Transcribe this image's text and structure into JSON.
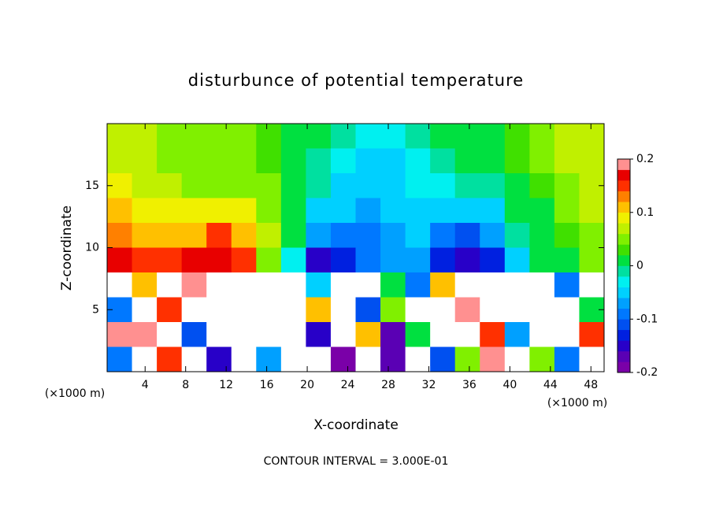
{
  "chart_data": {
    "type": "heatmap",
    "title": "disturbunce of potential temperature",
    "x_label": "X-coordinate",
    "y_label": "Z-coordinate",
    "x_unit": "(×1000 m)",
    "annotation": "CONTOUR INTERVAL = 3.000E-01",
    "xlim": [
      0.25,
      49.3
    ],
    "xticks": [
      4,
      8,
      12,
      16,
      20,
      24,
      28,
      32,
      36,
      40,
      44,
      48
    ],
    "ylim": [
      0,
      20
    ],
    "yticks": [
      5,
      10,
      15
    ],
    "zlim": [
      -0.2,
      0.2
    ],
    "zticks": [
      0.2,
      0.1,
      0,
      -0.1,
      -0.2
    ],
    "colors": [
      "#7a00a8",
      "#5a00b4",
      "#2800c8",
      "#0020e0",
      "#0050f0",
      "#0078ff",
      "#00a0ff",
      "#00d0ff",
      "#00f0f0",
      "#00e0a0",
      "#00e040",
      "#40e000",
      "#80f000",
      "#c0f000",
      "#f0f000",
      "#ffc000",
      "#ff8000",
      "#ff3000",
      "#e80000",
      "#ff9090"
    ],
    "z": [
      [
        0.06,
        0.06,
        0.05,
        0.04,
        0.04,
        0.04,
        0.03,
        0.02,
        0.0,
        -0.02,
        -0.03,
        -0.03,
        -0.02,
        0.0,
        0.02,
        0.02,
        0.03,
        0.04,
        0.06,
        0.07
      ],
      [
        0.07,
        0.06,
        0.05,
        0.05,
        0.04,
        0.04,
        0.03,
        0.02,
        -0.01,
        -0.03,
        -0.04,
        -0.04,
        -0.03,
        -0.01,
        0.01,
        0.02,
        0.03,
        0.04,
        0.06,
        0.07
      ],
      [
        0.08,
        0.07,
        0.06,
        0.05,
        0.05,
        0.05,
        0.04,
        0.02,
        -0.02,
        -0.04,
        -0.05,
        -0.04,
        -0.03,
        -0.03,
        -0.02,
        -0.01,
        0.02,
        0.03,
        0.05,
        0.06
      ],
      [
        0.1,
        0.09,
        0.08,
        0.08,
        0.09,
        0.08,
        0.05,
        0.02,
        -0.04,
        -0.06,
        -0.07,
        -0.06,
        -0.05,
        -0.06,
        -0.06,
        -0.04,
        0.0,
        0.02,
        0.04,
        0.06
      ],
      [
        0.13,
        0.12,
        0.1,
        0.12,
        0.14,
        0.12,
        0.06,
        0.01,
        -0.08,
        -0.1,
        -0.1,
        -0.08,
        -0.06,
        -0.1,
        -0.11,
        -0.08,
        -0.02,
        0.01,
        0.03,
        0.05
      ],
      [
        0.16,
        0.15,
        0.14,
        0.16,
        0.17,
        0.15,
        0.05,
        -0.03,
        -0.15,
        -0.14,
        -0.1,
        -0.08,
        -0.07,
        -0.14,
        -0.16,
        -0.14,
        -0.04,
        0.0,
        0.02,
        0.04
      ],
      [
        0.3,
        0.1,
        -0.3,
        0.2,
        0.3,
        -0.3,
        0.3,
        0.3,
        -0.05,
        0.3,
        0.3,
        0.0,
        -0.1,
        0.1,
        0.3,
        -0.3,
        0.3,
        0.3,
        -0.1,
        0.3
      ],
      [
        -0.1,
        0.3,
        0.15,
        -0.3,
        0.3,
        -0.3,
        -0.3,
        0.3,
        0.1,
        0.3,
        -0.12,
        0.05,
        0.3,
        0.3,
        0.18,
        0.3,
        -0.3,
        0.3,
        0.3,
        0.0
      ],
      [
        0.2,
        0.18,
        0.3,
        -0.12,
        0.3,
        0.3,
        0.3,
        -0.3,
        -0.15,
        0.3,
        0.1,
        -0.18,
        0.02,
        -0.3,
        0.3,
        0.15,
        -0.08,
        0.3,
        0.3,
        0.15
      ],
      [
        -0.1,
        0.3,
        0.15,
        0.3,
        -0.15,
        0.3,
        -0.08,
        0.3,
        0.3,
        -0.2,
        -0.3,
        -0.18,
        0.3,
        -0.12,
        0.05,
        0.18,
        0.3,
        0.05,
        -0.1,
        0.3
      ]
    ]
  }
}
